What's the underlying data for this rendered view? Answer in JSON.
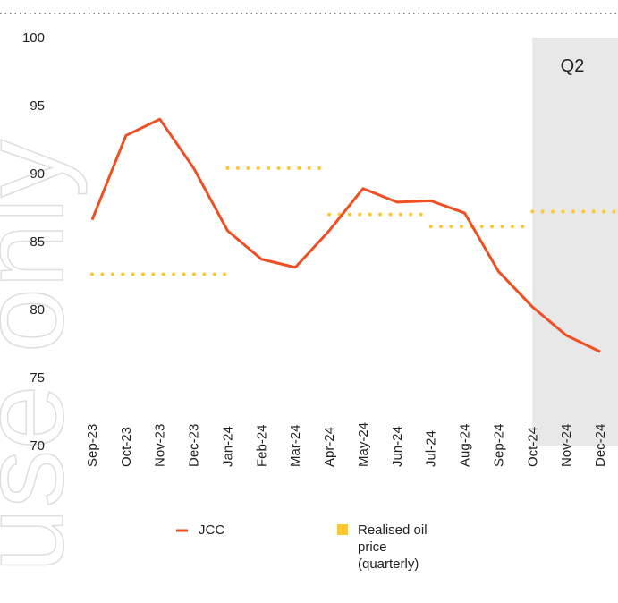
{
  "chart_data": {
    "type": "line",
    "watermark": "use only",
    "annotation": "Q2",
    "categories": [
      "Sep-23",
      "Oct-23",
      "Nov-23",
      "Dec-23",
      "Jan-24",
      "Feb-24",
      "Mar-24",
      "Apr-24",
      "May-24",
      "Jun-24",
      "Jul-24",
      "Aug-24",
      "Sep-24",
      "Oct-24",
      "Nov-24",
      "Dec-24"
    ],
    "series": [
      {
        "name": "JCC",
        "color": "#f04e23",
        "values": [
          86.6,
          92.8,
          94.0,
          90.4,
          85.8,
          83.7,
          83.1,
          85.8,
          88.9,
          87.9,
          88.0,
          87.1,
          82.8,
          80.2,
          78.1,
          76.9
        ]
      },
      {
        "name": "Realised oil price (quarterly)",
        "color": "#ffc72c",
        "values": [
          82.6,
          null,
          null,
          null,
          90.4,
          null,
          null,
          87.0,
          null,
          null,
          86.1,
          null,
          null,
          87.2,
          null,
          null
        ]
      }
    ],
    "ylim": [
      70,
      100
    ],
    "yticks": [
      70,
      75,
      80,
      85,
      90,
      95,
      100
    ]
  }
}
